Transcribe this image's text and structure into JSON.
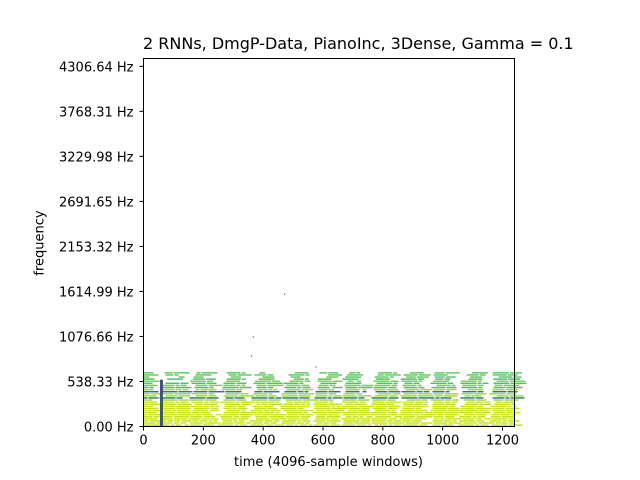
{
  "chart_data": {
    "type": "heatmap",
    "title": "2 RNNs, DmgP-Data, PianoInc, 3Dense, Gamma = 0.1",
    "xlabel": "time (4096-sample windows)",
    "ylabel": "frequency",
    "xlim": [
      0,
      1240
    ],
    "ylim": [
      0,
      4400
    ],
    "xticks": [
      0,
      200,
      400,
      600,
      800,
      1000,
      1200
    ],
    "xtick_labels": [
      "0",
      "200",
      "400",
      "600",
      "800",
      "1000",
      "1200"
    ],
    "yticks": [
      0,
      538.33,
      1076.66,
      1614.99,
      2153.32,
      2691.65,
      3229.98,
      3768.31,
      4306.64
    ],
    "ytick_labels": [
      "0.00 Hz",
      "538.33 Hz",
      "1076.66 Hz",
      "1614.99 Hz",
      "2153.32 Hz",
      "2691.65 Hz",
      "3229.98 Hz",
      "3768.31 Hz",
      "4306.64 Hz"
    ],
    "colormap": "viridis",
    "active_band_hz": [
      0,
      650
    ],
    "note_onset_windows": [
      60,
      160,
      265,
      365,
      470,
      575,
      670,
      770,
      865,
      965,
      1065,
      1165
    ],
    "grid": false
  }
}
